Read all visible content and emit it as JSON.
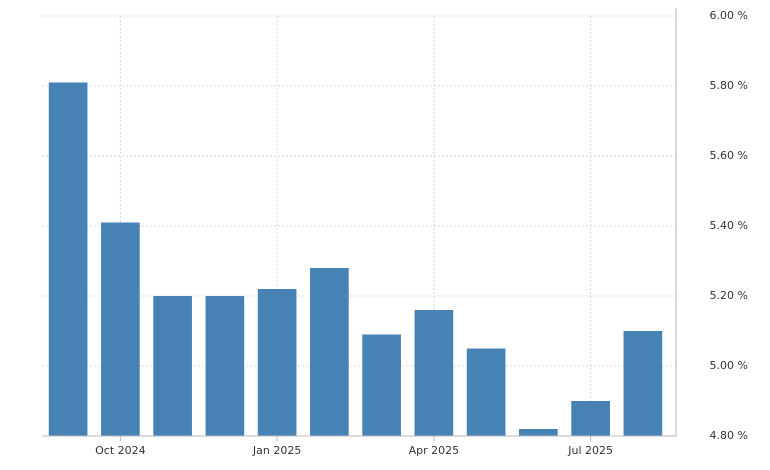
{
  "chart_data": {
    "type": "bar",
    "categories": [
      null,
      "Oct 2024",
      null,
      null,
      "Jan 2025",
      null,
      null,
      "Apr 2025",
      null,
      null,
      "Jul 2025",
      null
    ],
    "values": [
      5.81,
      5.41,
      5.2,
      5.2,
      5.22,
      5.28,
      5.09,
      5.16,
      5.05,
      4.82,
      4.9,
      5.1
    ],
    "color": "#4682b4",
    "ylim": [
      4.8,
      6.0
    ],
    "yticks": [
      {
        "value": 4.8,
        "label": "4.80 %"
      },
      {
        "value": 5.0,
        "label": "5.00 %"
      },
      {
        "value": 5.2,
        "label": "5.20 %"
      },
      {
        "value": 5.4,
        "label": "5.40 %"
      },
      {
        "value": 5.6,
        "label": "5.60 %"
      },
      {
        "value": 5.8,
        "label": "5.80 %"
      },
      {
        "value": 6.0,
        "label": "6.00 %"
      }
    ],
    "grid": true
  }
}
